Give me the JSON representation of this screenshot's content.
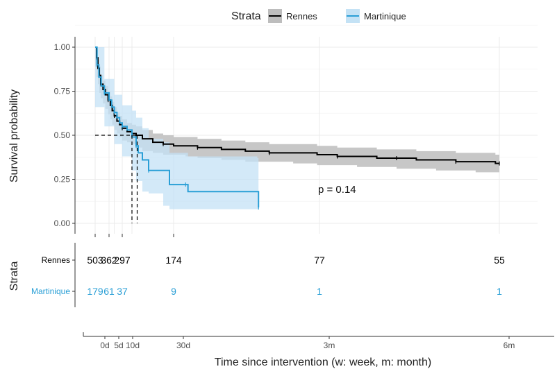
{
  "chart_data": {
    "type": "line",
    "subtype": "kaplan-meier survival curve with number-at-risk table",
    "legend": {
      "title": "Strata",
      "position": "top",
      "entries": [
        "Rennes",
        "Martinique"
      ]
    },
    "ylabel": "Survival probability",
    "xlabel": "Time since intervention (w: week, m: month)",
    "ylim": [
      0,
      1
    ],
    "yticks": [
      "0.00",
      "0.25",
      "0.50",
      "0.75",
      "1.00"
    ],
    "grid": true,
    "median_survival_lines": true,
    "annotation": "p = 0.14",
    "series": [
      {
        "name": "Rennes",
        "color": "#000000",
        "band_color": "#bdbdbd",
        "points": [
          [
            0.0,
            1.0
          ],
          [
            0.3,
            0.94
          ],
          [
            0.6,
            0.88
          ],
          [
            0.9,
            0.84
          ],
          [
            1.2,
            0.79
          ],
          [
            1.7,
            0.76
          ],
          [
            2.2,
            0.73
          ],
          [
            2.8,
            0.7
          ],
          [
            3.5,
            0.67
          ],
          [
            4.2,
            0.64
          ],
          [
            5.0,
            0.61
          ],
          [
            6.0,
            0.58
          ],
          [
            7.0,
            0.56
          ],
          [
            8.0,
            0.54
          ],
          [
            9.0,
            0.52
          ],
          [
            10.0,
            0.51
          ],
          [
            12.0,
            0.5
          ],
          [
            15.0,
            0.48
          ],
          [
            20.0,
            0.46
          ],
          [
            25.0,
            0.45
          ],
          [
            30.0,
            0.44
          ],
          [
            35.0,
            0.44
          ],
          [
            40.0,
            0.43
          ],
          [
            50.0,
            0.42
          ],
          [
            60.0,
            0.41
          ],
          [
            70.0,
            0.4
          ],
          [
            80.0,
            0.4
          ],
          [
            90.0,
            0.39
          ],
          [
            100.0,
            0.38
          ],
          [
            110.0,
            0.38
          ],
          [
            120.0,
            0.37
          ],
          [
            130.0,
            0.37
          ],
          [
            140.0,
            0.36
          ],
          [
            150.0,
            0.36
          ],
          [
            160.0,
            0.35
          ],
          [
            170.0,
            0.35
          ],
          [
            180.0,
            0.34
          ],
          [
            182.0,
            0.34
          ]
        ],
        "band": {
          "lower_offset": 0.05,
          "upper_offset": 0.05
        }
      },
      {
        "name": "Martinique",
        "color": "#2a9fd6",
        "band_color": "#c4e2f5",
        "points": [
          [
            0.0,
            1.0
          ],
          [
            0.4,
            0.9
          ],
          [
            0.8,
            0.83
          ],
          [
            1.3,
            0.78
          ],
          [
            2.0,
            0.74
          ],
          [
            3.0,
            0.7
          ],
          [
            4.0,
            0.66
          ],
          [
            5.0,
            0.63
          ],
          [
            6.0,
            0.6
          ],
          [
            7.0,
            0.57
          ],
          [
            8.0,
            0.55
          ],
          [
            9.0,
            0.53
          ],
          [
            10.0,
            0.49
          ],
          [
            12.0,
            0.44
          ],
          [
            13.0,
            0.4
          ],
          [
            15.0,
            0.36
          ],
          [
            18.0,
            0.3
          ],
          [
            25.0,
            0.3
          ],
          [
            28.0,
            0.22
          ],
          [
            35.0,
            0.22
          ],
          [
            36.0,
            0.18
          ],
          [
            65.0,
            0.18
          ],
          [
            65.5,
            0.09
          ]
        ],
        "band_lower": [
          [
            0.0,
            1.0
          ],
          [
            2.0,
            0.66
          ],
          [
            5.0,
            0.55
          ],
          [
            8.0,
            0.45
          ],
          [
            10.0,
            0.38
          ],
          [
            12.0,
            0.3
          ],
          [
            15.0,
            0.24
          ],
          [
            18.0,
            0.18
          ],
          [
            25.0,
            0.17
          ],
          [
            28.0,
            0.1
          ],
          [
            36.0,
            0.08
          ],
          [
            65.5,
            0.08
          ]
        ],
        "band_upper": [
          [
            0.0,
            1.0
          ],
          [
            2.0,
            0.82
          ],
          [
            5.0,
            0.73
          ],
          [
            8.0,
            0.67
          ],
          [
            10.0,
            0.64
          ],
          [
            12.0,
            0.6
          ],
          [
            15.0,
            0.54
          ],
          [
            18.0,
            0.48
          ],
          [
            25.0,
            0.46
          ],
          [
            28.0,
            0.4
          ],
          [
            36.0,
            0.38
          ],
          [
            65.0,
            0.37
          ],
          [
            65.5,
            0.37
          ]
        ]
      }
    ],
    "median_lines": {
      "y": 0.5,
      "x": [
        10.0,
        12.5
      ]
    },
    "risk_table": {
      "title": "Strata",
      "rows": [
        {
          "label": "Rennes",
          "color": "#000000",
          "values": [
            {
              "x": 0,
              "text": "503"
            },
            {
              "x": 3,
              "text": "362"
            },
            {
              "x": 8,
              "text": "297"
            },
            {
              "x": 30,
              "text": "174"
            },
            {
              "x": 91,
              "text": "77"
            },
            {
              "x": 182,
              "text": "55"
            }
          ]
        },
        {
          "label": "Martinique",
          "color": "#2a9fd6",
          "values": [
            {
              "x": 0,
              "text": "179"
            },
            {
              "x": 3,
              "text": "61"
            },
            {
              "x": 8,
              "text": "37"
            },
            {
              "x": 30,
              "text": "9"
            },
            {
              "x": 91,
              "text": "1"
            },
            {
              "x": 182,
              "text": "1"
            }
          ]
        }
      ]
    },
    "xticks": [
      {
        "x": 0,
        "label": "0d"
      },
      {
        "x": 5,
        "label": "5d"
      },
      {
        "x": 10,
        "label": "10d"
      },
      {
        "x": 30,
        "label": "30d"
      },
      {
        "x": 91,
        "label": "3m"
      },
      {
        "x": 182,
        "label": "6m"
      }
    ]
  }
}
